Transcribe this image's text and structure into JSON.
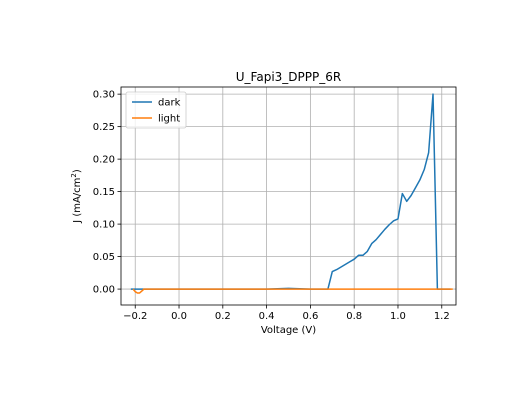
{
  "chart_data": {
    "type": "line",
    "title": "U_Fapi3_DPPP_6R",
    "xlabel": "Voltage (V)",
    "ylabel_prefix": "J (mA/cm",
    "ylabel_sup": "2",
    "ylabel_suffix": ")",
    "xlim": [
      -0.265,
      1.265
    ],
    "ylim": [
      -0.0245,
      0.311
    ],
    "xticks": [
      -0.2,
      0.0,
      0.2,
      0.4,
      0.6,
      0.8,
      1.0,
      1.2
    ],
    "xtick_labels": [
      "−0.2",
      "0.0",
      "0.2",
      "0.4",
      "0.6",
      "0.8",
      "1.0",
      "1.2"
    ],
    "yticks": [
      0.0,
      0.05,
      0.1,
      0.15,
      0.2,
      0.25,
      0.3
    ],
    "ytick_labels": [
      "0.00",
      "0.05",
      "0.10",
      "0.15",
      "0.20",
      "0.25",
      "0.30"
    ],
    "grid": true,
    "legend_position": "upper-left",
    "series": [
      {
        "name": "dark",
        "color": "#1f77b4",
        "x": [
          -0.22,
          -0.2,
          -0.18,
          -0.15,
          -0.1,
          0.0,
          0.2,
          0.4,
          0.5,
          0.6,
          0.66,
          0.68,
          0.7,
          0.72,
          0.74,
          0.76,
          0.78,
          0.8,
          0.82,
          0.84,
          0.86,
          0.88,
          0.9,
          0.92,
          0.94,
          0.96,
          0.98,
          1.0,
          1.02,
          1.04,
          1.06,
          1.08,
          1.1,
          1.12,
          1.14,
          1.16,
          1.18,
          1.2,
          1.22,
          1.24
        ],
        "y": [
          0.0,
          0.0,
          0.0,
          0.0,
          0.0,
          0.0,
          0.0,
          0.0,
          0.001,
          0.0,
          0.0,
          0.0,
          0.027,
          0.03,
          0.034,
          0.038,
          0.042,
          0.046,
          0.052,
          0.052,
          0.058,
          0.07,
          0.076,
          0.084,
          0.092,
          0.099,
          0.105,
          0.108,
          0.147,
          0.135,
          0.144,
          0.156,
          0.168,
          0.184,
          0.21,
          0.3,
          0.0,
          0.0,
          0.0,
          0.0
        ]
      },
      {
        "name": "light",
        "color": "#ff7f0e",
        "x": [
          -0.21,
          -0.2,
          -0.19,
          -0.18,
          -0.17,
          -0.16,
          -0.15,
          0.0,
          0.2,
          0.4,
          0.6,
          0.8,
          1.0,
          1.2,
          1.25
        ],
        "y": [
          0.0,
          -0.004,
          -0.006,
          -0.006,
          -0.003,
          0.0,
          0.0,
          0.0,
          0.0,
          0.0,
          0.0,
          0.0,
          0.0,
          0.0,
          0.0
        ]
      }
    ]
  }
}
